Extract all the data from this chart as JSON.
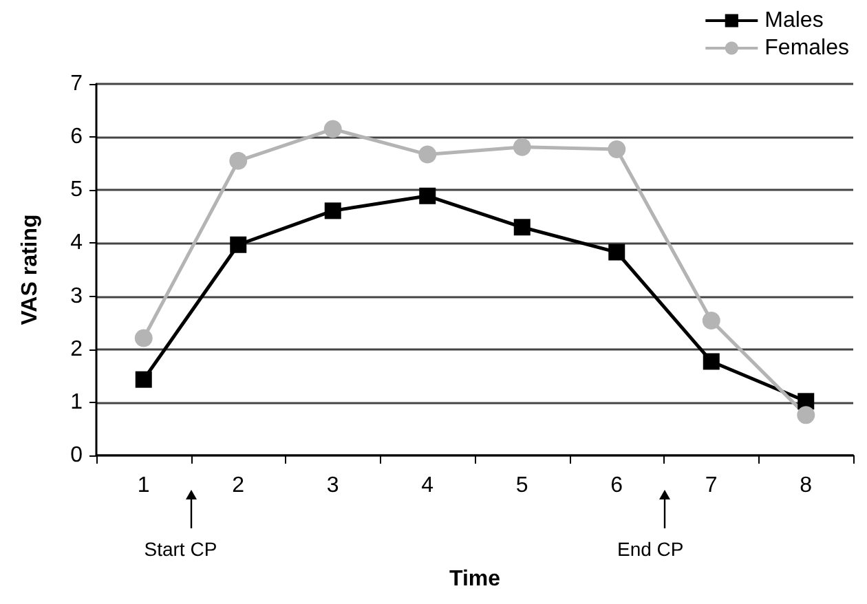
{
  "chart_data": {
    "type": "line",
    "xlabel": "Time",
    "ylabel": "VAS rating",
    "categories": [
      "1",
      "2",
      "3",
      "4",
      "5",
      "6",
      "7",
      "8"
    ],
    "series": [
      {
        "name": "Males",
        "color": "#000000",
        "marker": "square",
        "values": [
          1.43,
          3.97,
          4.61,
          4.89,
          4.3,
          3.83,
          1.77,
          1.02
        ]
      },
      {
        "name": "Females",
        "color": "#b4b4b4",
        "marker": "circle",
        "values": [
          2.21,
          5.55,
          6.15,
          5.67,
          5.81,
          5.77,
          2.54,
          0.76
        ]
      }
    ],
    "ylim": [
      0,
      7
    ],
    "yticks": [
      0,
      1,
      2,
      3,
      4,
      5,
      6,
      7
    ],
    "grid": "y",
    "legend": "top right",
    "line_style": "solid",
    "annotations": [
      "Start CP",
      "End CP"
    ]
  }
}
